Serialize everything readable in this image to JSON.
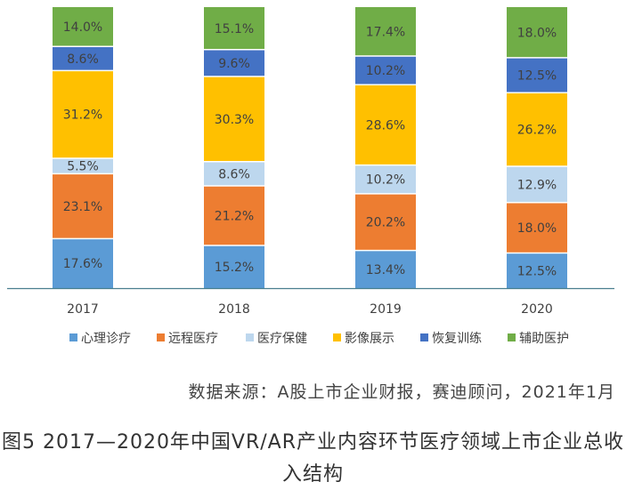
{
  "chart_data": {
    "type": "bar",
    "stacked": true,
    "categories": [
      "2017",
      "2018",
      "2019",
      "2020"
    ],
    "series": [
      {
        "name": "心理诊疗",
        "color": "#5B9BD5",
        "values": [
          17.6,
          15.2,
          13.4,
          12.5
        ],
        "labels": [
          "17.6%",
          "15.2%",
          "13.4%",
          "12.5%"
        ]
      },
      {
        "name": "远程医疗",
        "color": "#ED7D31",
        "values": [
          23.1,
          21.2,
          20.2,
          18.0
        ],
        "labels": [
          "23.1%",
          "21.2%",
          "20.2%",
          "18.0%"
        ]
      },
      {
        "name": "医疗保健",
        "color": "#BDD7EE",
        "values": [
          5.5,
          8.6,
          10.2,
          12.9
        ],
        "labels": [
          "5.5%",
          "8.6%",
          "10.2%",
          "12.9%"
        ]
      },
      {
        "name": "影像展示",
        "color": "#FFC000",
        "values": [
          31.2,
          30.3,
          28.6,
          26.2
        ],
        "labels": [
          "31.2%",
          "30.3%",
          "28.6%",
          "26.2%"
        ]
      },
      {
        "name": "恢复训练",
        "color": "#4472C4",
        "values": [
          8.6,
          9.6,
          10.2,
          12.5
        ],
        "labels": [
          "8.6%",
          "9.6%",
          "10.2%",
          "12.5%"
        ]
      },
      {
        "name": "辅助医护",
        "color": "#70AD47",
        "values": [
          14.0,
          15.1,
          17.4,
          18.0
        ],
        "labels": [
          "14.0%",
          "15.1%",
          "17.4%",
          "18.0%"
        ]
      }
    ],
    "ylim": [
      0,
      100
    ],
    "grid": false,
    "legend_position": "bottom"
  },
  "source_text": "数据来源：A股上市企业财报，赛迪顾问，2021年1月",
  "caption": "图5 2017—2020年中国VR/AR产业内容环节医疗领域上市企业总收入结构"
}
